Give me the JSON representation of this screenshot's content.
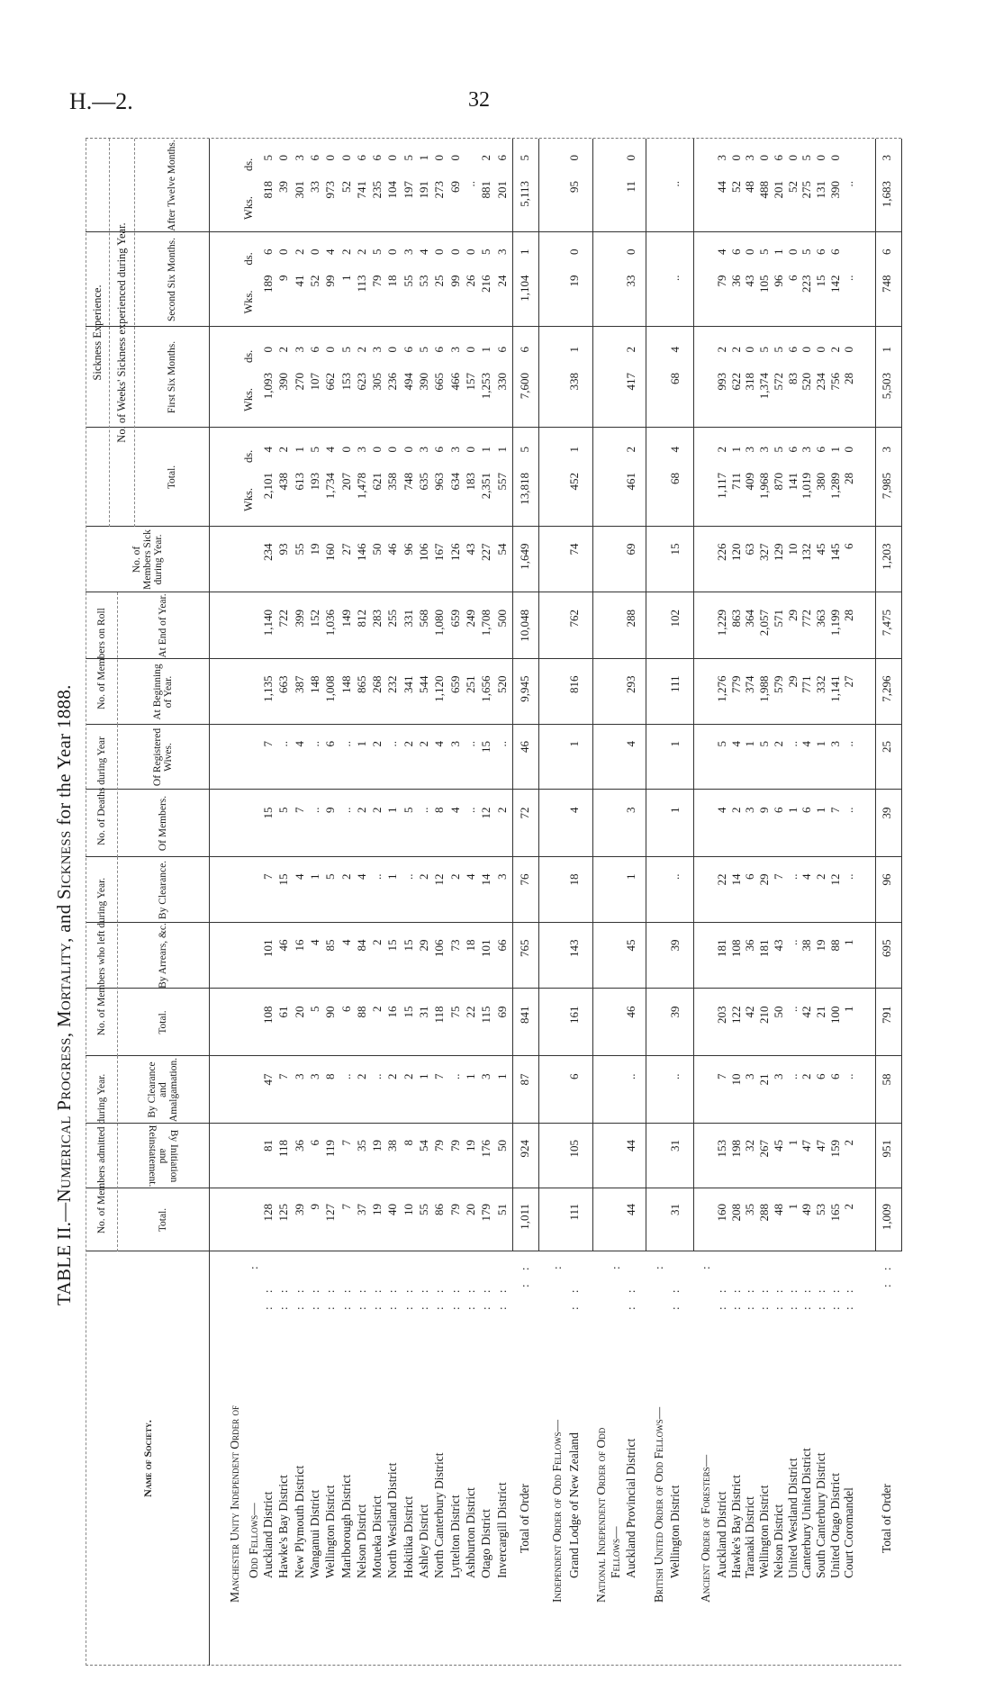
{
  "page": {
    "reference": "H.—2.",
    "number": "32"
  },
  "title": {
    "prefix": "TABLE II.—",
    "p1": "Numerical Progress, Mortality,",
    "and": " and ",
    "p2": "Sickness",
    "suffix": " for the Year 1888."
  },
  "headers": {
    "name": "Name of Society.",
    "admitted": {
      "group": "No. of Members admitted during Year.",
      "total": "Total.",
      "initiation": "By Initiation and Reinstatement.",
      "clearance": "By Clearance and Amalgamation."
    },
    "left": {
      "group": "No. of Members who left during Year.",
      "total": "Total.",
      "arrears": "By Arrears, &c.",
      "clearance": "By Clearance."
    },
    "deaths": {
      "group": "No. of Deaths during Year",
      "members": "Of Members.",
      "wives": "Of Registered Wives."
    },
    "roll": {
      "group": "No. of Members on Roll",
      "beginning": "At Beginning of Year.",
      "end": "At End of Year."
    },
    "sick": "No. of Members Sick during Year.",
    "sickness": {
      "group": "Sickness Experience.",
      "sub": "No. of Weeks' Sickness experienced during Year.",
      "total": "Total.",
      "first": "First Six Months.",
      "second": "Second Six Months.",
      "after": "After Twelve Months."
    },
    "weeks": "Wks.",
    "days": "ds."
  },
  "groups": [
    {
      "title": [
        "Manchester Unity Independent Order of",
        "Odd Fellows—"
      ],
      "rows": [
        {
          "name": "Auckland District",
          "v": [
            "128",
            "81",
            "47",
            "108",
            "101",
            "7",
            "15",
            "7",
            "1,135",
            "1,140",
            "234",
            "2,101",
            "4",
            "1,093",
            "0",
            "189",
            "6",
            "818",
            "5"
          ]
        },
        {
          "name": "Hawke's Bay District",
          "v": [
            "125",
            "118",
            "7",
            "61",
            "46",
            "15",
            "5",
            "..",
            "663",
            "722",
            "93",
            "438",
            "2",
            "390",
            "2",
            "9",
            "0",
            "39",
            "0"
          ]
        },
        {
          "name": "New Plymouth District",
          "v": [
            "39",
            "36",
            "3",
            "20",
            "16",
            "4",
            "7",
            "4",
            "387",
            "399",
            "55",
            "613",
            "1",
            "270",
            "3",
            "41",
            "2",
            "301",
            "3"
          ]
        },
        {
          "name": "Wanganui District",
          "v": [
            "9",
            "6",
            "3",
            "5",
            "4",
            "1",
            "..",
            "..",
            "148",
            "152",
            "19",
            "193",
            "5",
            "107",
            "6",
            "52",
            "0",
            "33",
            "6"
          ]
        },
        {
          "name": "Wellington District",
          "v": [
            "127",
            "119",
            "8",
            "90",
            "85",
            "5",
            "9",
            "6",
            "1,008",
            "1,036",
            "160",
            "1,734",
            "4",
            "662",
            "0",
            "99",
            "4",
            "973",
            "0"
          ]
        },
        {
          "name": "Marlborough District",
          "v": [
            "7",
            "7",
            "..",
            "6",
            "4",
            "2",
            "..",
            "..",
            "148",
            "149",
            "27",
            "207",
            "0",
            "153",
            "5",
            "1",
            "2",
            "52",
            "0"
          ]
        },
        {
          "name": "Nelson District",
          "v": [
            "37",
            "35",
            "2",
            "88",
            "84",
            "4",
            "2",
            "1",
            "865",
            "812",
            "146",
            "1,478",
            "3",
            "623",
            "2",
            "113",
            "2",
            "741",
            "6"
          ]
        },
        {
          "name": "Motueka District",
          "v": [
            "19",
            "19",
            "..",
            "2",
            "2",
            "..",
            "2",
            "2",
            "268",
            "283",
            "50",
            "621",
            "0",
            "305",
            "3",
            "79",
            "5",
            "235",
            "6"
          ]
        },
        {
          "name": "North Westland District",
          "v": [
            "40",
            "38",
            "2",
            "16",
            "15",
            "1",
            "1",
            "..",
            "232",
            "255",
            "46",
            "358",
            "0",
            "236",
            "0",
            "18",
            "0",
            "104",
            "0"
          ]
        },
        {
          "name": "Hokitika District",
          "v": [
            "10",
            "8",
            "2",
            "15",
            "15",
            "..",
            "5",
            "2",
            "341",
            "331",
            "96",
            "748",
            "0",
            "494",
            "6",
            "55",
            "3",
            "197",
            "5"
          ]
        },
        {
          "name": "Ashley District",
          "v": [
            "55",
            "54",
            "1",
            "31",
            "29",
            "2",
            "..",
            "2",
            "544",
            "568",
            "106",
            "635",
            "3",
            "390",
            "5",
            "53",
            "4",
            "191",
            "1"
          ]
        },
        {
          "name": "North Canterbury District",
          "v": [
            "86",
            "79",
            "7",
            "118",
            "106",
            "12",
            "8",
            "4",
            "1,120",
            "1,080",
            "167",
            "963",
            "6",
            "665",
            "6",
            "25",
            "0",
            "273",
            "0"
          ]
        },
        {
          "name": "Lyttelton District",
          "v": [
            "79",
            "79",
            "..",
            "75",
            "73",
            "2",
            "4",
            "3",
            "659",
            "659",
            "126",
            "634",
            "3",
            "466",
            "3",
            "99",
            "0",
            "69",
            "0"
          ]
        },
        {
          "name": "Ashburton District",
          "v": [
            "20",
            "19",
            "1",
            "22",
            "18",
            "4",
            "..",
            "..",
            "251",
            "249",
            "43",
            "183",
            "0",
            "157",
            "0",
            "26",
            "0",
            "..",
            ""
          ]
        },
        {
          "name": "Otago District",
          "v": [
            "179",
            "176",
            "3",
            "115",
            "101",
            "14",
            "12",
            "15",
            "1,656",
            "1,708",
            "227",
            "2,351",
            "1",
            "1,253",
            "1",
            "216",
            "5",
            "881",
            "2"
          ]
        },
        {
          "name": "Invercargill District",
          "v": [
            "51",
            "50",
            "1",
            "69",
            "66",
            "3",
            "2",
            "..",
            "520",
            "500",
            "54",
            "557",
            "1",
            "330",
            "6",
            "24",
            "3",
            "201",
            "6"
          ]
        }
      ],
      "total": {
        "label": "Total of Order",
        "v": [
          "1,011",
          "924",
          "87",
          "841",
          "765",
          "76",
          "72",
          "46",
          "9,945",
          "10,048",
          "1,649",
          "13,818",
          "5",
          "7,600",
          "6",
          "1,104",
          "1",
          "5,113",
          "5"
        ]
      }
    },
    {
      "title": [
        "Independent Order of Odd Fellows—"
      ],
      "rows": [
        {
          "name": "Grand Lodge of New Zealand",
          "v": [
            "111",
            "105",
            "6",
            "161",
            "143",
            "18",
            "4",
            "1",
            "816",
            "762",
            "74",
            "452",
            "1",
            "338",
            "1",
            "19",
            "0",
            "95",
            "0"
          ]
        }
      ]
    },
    {
      "title": [
        "National Independent Order of Odd",
        "Fellows—"
      ],
      "rows": [
        {
          "name": "Auckland Provincial District",
          "v": [
            "44",
            "44",
            "..",
            "46",
            "45",
            "1",
            "3",
            "4",
            "293",
            "288",
            "69",
            "461",
            "2",
            "417",
            "2",
            "33",
            "0",
            "11",
            "0"
          ]
        }
      ]
    },
    {
      "title": [
        "British United Order of Odd Fellows—"
      ],
      "rows": [
        {
          "name": "Wellington District",
          "v": [
            "31",
            "31",
            "..",
            "39",
            "39",
            "..",
            "1",
            "1",
            "111",
            "102",
            "15",
            "68",
            "4",
            "68",
            "4",
            "..",
            "",
            "..",
            ""
          ]
        }
      ]
    },
    {
      "title": [
        "Ancient Order of Foresters—"
      ],
      "rows": [
        {
          "name": "Auckland District",
          "v": [
            "160",
            "153",
            "7",
            "203",
            "181",
            "22",
            "4",
            "5",
            "1,276",
            "1,229",
            "226",
            "1,117",
            "2",
            "993",
            "2",
            "79",
            "4",
            "44",
            "3"
          ]
        },
        {
          "name": "Hawke's Bay District",
          "v": [
            "208",
            "198",
            "10",
            "122",
            "108",
            "14",
            "2",
            "4",
            "779",
            "863",
            "120",
            "711",
            "1",
            "622",
            "2",
            "36",
            "6",
            "52",
            "0"
          ]
        },
        {
          "name": "Taranaki District",
          "v": [
            "35",
            "32",
            "3",
            "42",
            "36",
            "6",
            "3",
            "1",
            "374",
            "364",
            "63",
            "409",
            "3",
            "318",
            "0",
            "43",
            "0",
            "48",
            "3"
          ]
        },
        {
          "name": "Wellington District",
          "v": [
            "288",
            "267",
            "21",
            "210",
            "181",
            "29",
            "9",
            "5",
            "1,988",
            "2,057",
            "327",
            "1,968",
            "3",
            "1,374",
            "5",
            "105",
            "5",
            "488",
            "0"
          ]
        },
        {
          "name": "Nelson District",
          "v": [
            "48",
            "45",
            "3",
            "50",
            "43",
            "7",
            "6",
            "2",
            "579",
            "571",
            "129",
            "870",
            "5",
            "572",
            "5",
            "96",
            "1",
            "201",
            "6"
          ]
        },
        {
          "name": "United Westland District",
          "v": [
            "1",
            "1",
            "..",
            "..",
            "..",
            "..",
            "1",
            "..",
            "29",
            "29",
            "10",
            "141",
            "6",
            "83",
            "6",
            "6",
            "0",
            "52",
            "0"
          ]
        },
        {
          "name": "Canterbury United District",
          "v": [
            "49",
            "47",
            "2",
            "42",
            "38",
            "4",
            "6",
            "4",
            "771",
            "772",
            "132",
            "1,019",
            "3",
            "520",
            "0",
            "223",
            "5",
            "275",
            "5"
          ]
        },
        {
          "name": "South Canterbury District",
          "v": [
            "53",
            "47",
            "6",
            "21",
            "19",
            "2",
            "1",
            "1",
            "332",
            "363",
            "45",
            "380",
            "6",
            "234",
            "0",
            "15",
            "6",
            "131",
            "0"
          ]
        },
        {
          "name": "United Otago District",
          "v": [
            "165",
            "159",
            "6",
            "100",
            "88",
            "12",
            "7",
            "3",
            "1,141",
            "1,199",
            "145",
            "1,289",
            "1",
            "756",
            "2",
            "142",
            "6",
            "390",
            "0"
          ]
        },
        {
          "name": "Court Coromandel",
          "v": [
            "2",
            "2",
            "..",
            "1",
            "1",
            "..",
            "..",
            "..",
            "27",
            "28",
            "6",
            "28",
            "0",
            "28",
            "0",
            "..",
            "",
            "..",
            ""
          ]
        }
      ],
      "total": {
        "label": "Total of Order",
        "v": [
          "1,009",
          "951",
          "58",
          "791",
          "695",
          "96",
          "39",
          "25",
          "7,296",
          "7,475",
          "1,203",
          "7,985",
          "3",
          "5,503",
          "1",
          "748",
          "6",
          "1,683",
          "3"
        ]
      }
    }
  ]
}
